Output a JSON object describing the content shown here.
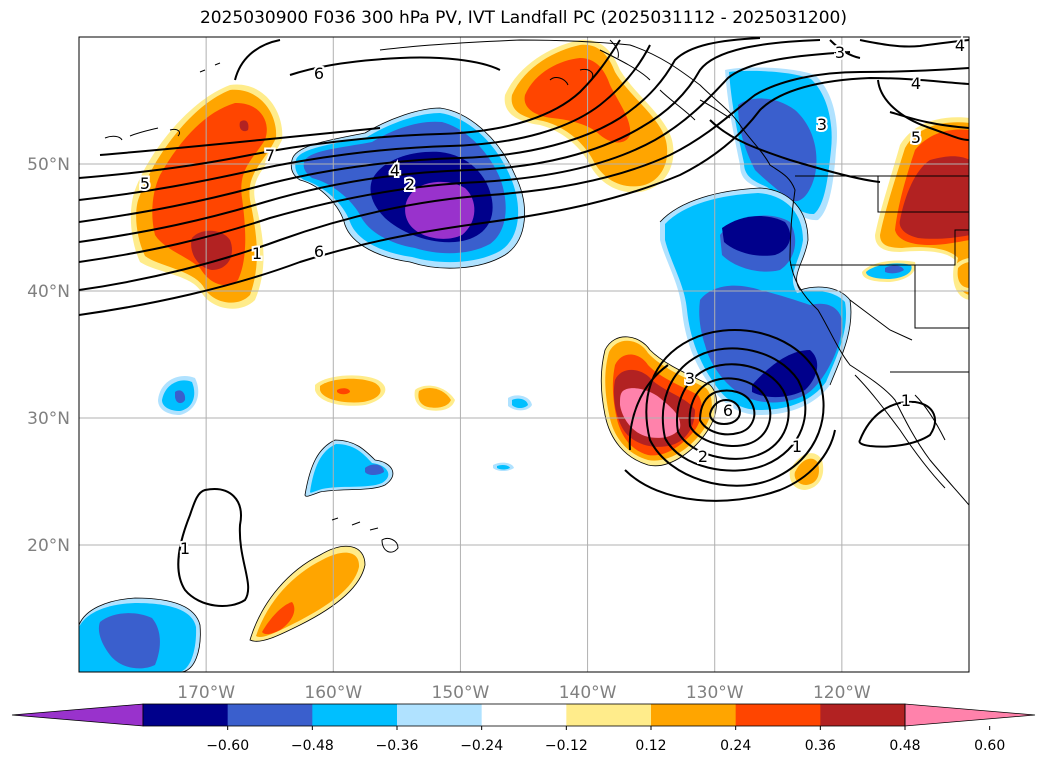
{
  "title": "2025030900 F036 300 hPa PV, IVT Landfall PC (2025031112 - 2025031200)",
  "map": {
    "lon_labels": [
      "170°W",
      "160°W",
      "150°W",
      "140°W",
      "130°W",
      "120°W"
    ],
    "lat_labels": [
      "50°N",
      "40°N",
      "30°N",
      "20°N"
    ],
    "lon_values": [
      -170,
      -160,
      -150,
      -140,
      -130,
      -120
    ],
    "lat_values": [
      50,
      40,
      30,
      20
    ],
    "extent": {
      "lon_min": -180,
      "lon_max": -110,
      "lat_min": 10,
      "lat_max": 60
    },
    "gridlines": true,
    "contour_labels": [
      "6",
      "7",
      "5",
      "4",
      "2",
      "1",
      "6",
      "3",
      "4",
      "5",
      "3",
      "4",
      "3",
      "6",
      "2",
      "1",
      "1",
      "1"
    ]
  },
  "colorbar": {
    "ticks": [
      "−0.60",
      "−0.48",
      "−0.36",
      "−0.24",
      "−0.12",
      "0.12",
      "0.24",
      "0.36",
      "0.48",
      "0.60"
    ],
    "colors": [
      "#9932cc",
      "#00008b",
      "#3a5fcd",
      "#00bfff",
      "#b0e2ff",
      "#ffffff",
      "#ffec8b",
      "#ffa500",
      "#ff4500",
      "#b22222",
      "#ff82ab"
    ]
  }
}
